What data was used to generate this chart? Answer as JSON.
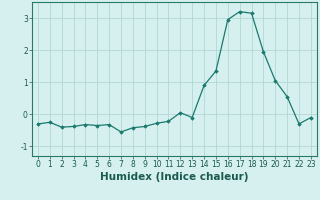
{
  "x": [
    0,
    1,
    2,
    3,
    4,
    5,
    6,
    7,
    8,
    9,
    10,
    11,
    12,
    13,
    14,
    15,
    16,
    17,
    18,
    19,
    20,
    21,
    22,
    23
  ],
  "y": [
    -0.3,
    -0.25,
    -0.4,
    -0.38,
    -0.32,
    -0.35,
    -0.32,
    -0.55,
    -0.42,
    -0.38,
    -0.28,
    -0.22,
    0.05,
    -0.1,
    0.9,
    1.35,
    2.95,
    3.2,
    3.15,
    1.95,
    1.05,
    0.55,
    -0.3,
    -0.1
  ],
  "xlim": [
    -0.5,
    23.5
  ],
  "ylim": [
    -1.3,
    3.5
  ],
  "yticks": [
    -1,
    0,
    1,
    2,
    3
  ],
  "xticks": [
    0,
    1,
    2,
    3,
    4,
    5,
    6,
    7,
    8,
    9,
    10,
    11,
    12,
    13,
    14,
    15,
    16,
    17,
    18,
    19,
    20,
    21,
    22,
    23
  ],
  "xlabel": "Humidex (Indice chaleur)",
  "line_color": "#1a7a6e",
  "marker": "D",
  "marker_size": 1.8,
  "bg_color": "#d6f0ef",
  "grid_color": "#b0d8d4",
  "tick_fontsize": 5.5,
  "xlabel_fontsize": 7.5
}
